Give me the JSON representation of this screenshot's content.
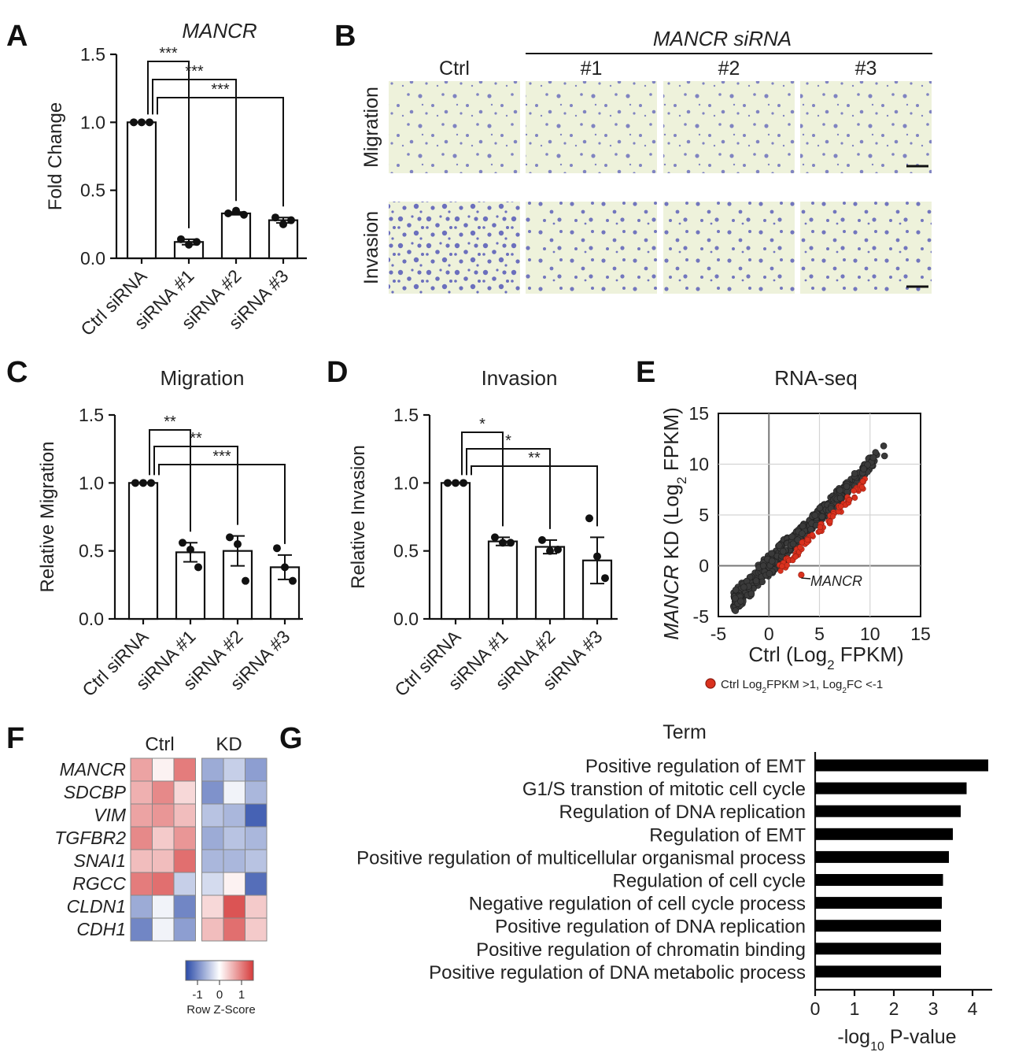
{
  "panel_letters": [
    "A",
    "B",
    "C",
    "D",
    "E",
    "F",
    "G"
  ],
  "chart_data": [
    {
      "id": "A",
      "type": "bar",
      "title": "MANCR",
      "title_italic": true,
      "ylabel": "Fold Change",
      "ylim": [
        0,
        1.5
      ],
      "yticks": [
        "0.0",
        "0.5",
        "1.0",
        "1.5"
      ],
      "categories": [
        "Ctrl siRNA",
        "siRNA #1",
        "siRNA #2",
        "siRNA #3"
      ],
      "values": [
        1.0,
        0.12,
        0.33,
        0.28
      ],
      "errors": [
        0.0,
        0.02,
        0.01,
        0.02
      ],
      "points": [
        [
          1.0,
          1.0,
          1.0
        ],
        [
          0.14,
          0.1,
          0.12
        ],
        [
          0.33,
          0.35,
          0.32
        ],
        [
          0.3,
          0.25,
          0.28
        ]
      ],
      "significance": [
        {
          "to": 1,
          "label": "***"
        },
        {
          "to": 2,
          "label": "***"
        },
        {
          "to": 3,
          "label": "***"
        }
      ]
    },
    {
      "id": "B",
      "type": "image-grid",
      "group_label": "MANCR siRNA",
      "columns": [
        "Ctrl",
        "#1",
        "#2",
        "#3"
      ],
      "rows": [
        "Migration",
        "Invasion"
      ]
    },
    {
      "id": "C",
      "type": "bar",
      "title": "Migration",
      "ylabel": "Relative Migration",
      "ylim": [
        0,
        1.5
      ],
      "yticks": [
        "0.0",
        "0.5",
        "1.0",
        "1.5"
      ],
      "categories": [
        "Ctrl siRNA",
        "siRNA #1",
        "siRNA #2",
        "siRNA #3"
      ],
      "values": [
        1.0,
        0.49,
        0.5,
        0.38
      ],
      "errors": [
        0.0,
        0.07,
        0.11,
        0.09
      ],
      "points": [
        [
          1.0,
          1.0,
          1.0
        ],
        [
          0.56,
          0.51,
          0.38
        ],
        [
          0.6,
          0.55,
          0.28
        ],
        [
          0.52,
          0.38,
          0.28
        ]
      ],
      "significance": [
        {
          "to": 1,
          "label": "**"
        },
        {
          "to": 2,
          "label": "**"
        },
        {
          "to": 3,
          "label": "***"
        }
      ]
    },
    {
      "id": "D",
      "type": "bar",
      "title": "Invasion",
      "ylabel": "Relative Invasion",
      "ylim": [
        0,
        1.5
      ],
      "yticks": [
        "0.0",
        "0.5",
        "1.0",
        "1.5"
      ],
      "categories": [
        "Ctrl siRNA",
        "siRNA #1",
        "siRNA #2",
        "siRNA #3"
      ],
      "values": [
        1.0,
        0.57,
        0.53,
        0.43
      ],
      "errors": [
        0.0,
        0.03,
        0.05,
        0.17
      ],
      "points": [
        [
          1.0,
          1.0,
          1.0
        ],
        [
          0.6,
          0.56,
          0.56
        ],
        [
          0.58,
          0.5,
          0.51
        ],
        [
          0.74,
          0.46,
          0.3
        ]
      ],
      "significance": [
        {
          "to": 1,
          "label": "*"
        },
        {
          "to": 2,
          "label": "*"
        },
        {
          "to": 3,
          "label": "**"
        }
      ]
    },
    {
      "id": "E",
      "type": "scatter",
      "title": "RNA-seq",
      "xlabel_parts": [
        "Ctrl (Log",
        "2",
        " FPKM)"
      ],
      "ylabel_parts": [
        "MANCR",
        " KD (Log",
        "2",
        " FPKM)"
      ],
      "xlim": [
        -5,
        15
      ],
      "ylim": [
        -5,
        15
      ],
      "xticks": [
        "-5",
        "0",
        "5",
        "10",
        "15"
      ],
      "yticks": [
        "-5",
        "0",
        "5",
        "10",
        "15"
      ],
      "grid": true,
      "series": [
        {
          "color": "#3a3a3a",
          "band": {
            "x": [
              -3.5,
              12.5
            ],
            "halfwidth": 0.7
          }
        },
        {
          "name": "Ctrl Log2FPKM >1, Log2FC <-1",
          "color": "#d9311e",
          "band": {
            "x": [
              1,
              9.5
            ],
            "offset": -1.4,
            "halfwidth": 0.45
          }
        }
      ],
      "annotation": "MANCR",
      "legend_parts": [
        "Ctrl Log",
        "2",
        "FPKM >1, Log",
        "2",
        "FC <-1"
      ]
    },
    {
      "id": "F",
      "type": "heatmap",
      "column_groups": [
        "Ctrl",
        "KD"
      ],
      "rows": [
        "MANCR",
        "SDCBP",
        "VIM",
        "TGFBR2",
        "SNAI1",
        "RGCC",
        "CLDN1",
        "CDH1"
      ],
      "values": [
        [
          0.7,
          0.1,
          1.0,
          -0.7,
          -0.4,
          -0.8
        ],
        [
          0.6,
          0.9,
          0.3,
          -0.9,
          -0.1,
          -0.6
        ],
        [
          0.7,
          0.8,
          0.5,
          -0.5,
          -0.6,
          -1.3
        ],
        [
          0.9,
          0.4,
          0.8,
          -0.7,
          -0.5,
          -0.6
        ],
        [
          0.5,
          0.5,
          1.1,
          -0.6,
          -0.6,
          -0.5
        ],
        [
          1.0,
          1.1,
          -0.4,
          -0.3,
          0.1,
          -1.2
        ],
        [
          -0.7,
          -0.1,
          -1.0,
          0.3,
          1.3,
          0.4
        ],
        [
          -1.0,
          -0.1,
          -0.8,
          0.5,
          1.1,
          0.4
        ]
      ],
      "scale_ticks": [
        "-1",
        "0",
        "1"
      ],
      "scale_label": "Row Z-Score",
      "scale_colors": [
        "#2a4aa8",
        "#ffffff",
        "#d63a3a"
      ]
    },
    {
      "id": "G",
      "type": "bar",
      "orientation": "horizontal",
      "title": "Term",
      "xlabel_parts": [
        "-log",
        "10",
        " P-value"
      ],
      "xlim": [
        0,
        4.5
      ],
      "xticks": [
        "0",
        "1",
        "2",
        "3",
        "4"
      ],
      "categories": [
        "Positive regulation of EMT",
        "G1/S transtion of mitotic cell cycle",
        "Regulation of DNA replication",
        "Regulation of EMT",
        "Positive regulation of multicellular organismal process",
        "Regulation of cell cycle",
        "Negative regulation of cell cycle process",
        "Positive regulation of DNA replication",
        "Positive regulation of chromatin binding",
        "Positive regulation of DNA metabolic process"
      ],
      "values": [
        4.4,
        3.85,
        3.7,
        3.5,
        3.4,
        3.25,
        3.22,
        3.2,
        3.2,
        3.2
      ]
    }
  ]
}
